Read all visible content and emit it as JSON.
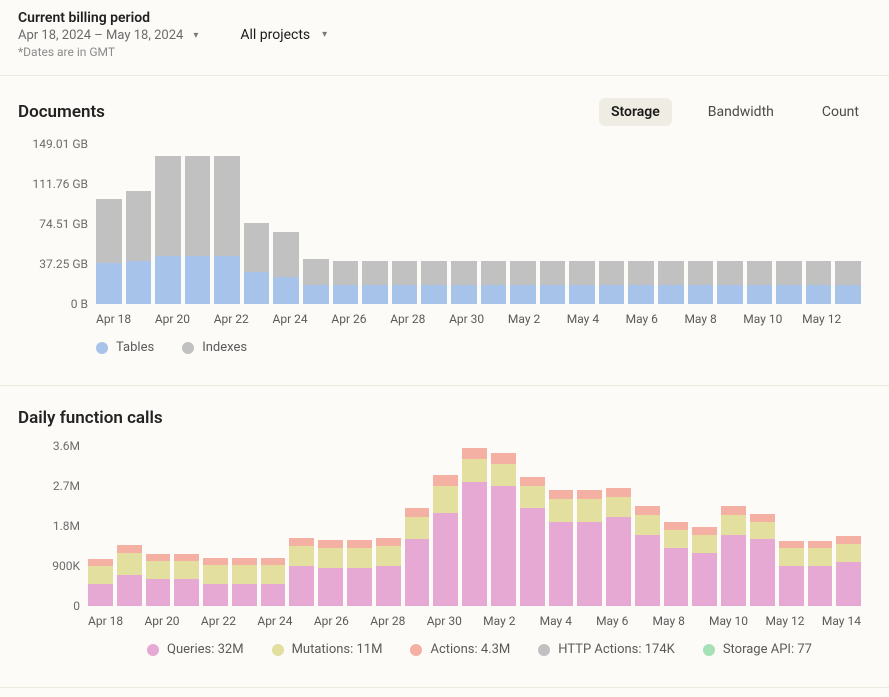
{
  "header": {
    "period_title": "Current billing period",
    "period_range": "Apr 18, 2024 – May 18, 2024",
    "period_note": "*Dates are in GMT",
    "projects_label": "All projects"
  },
  "tabs": {
    "storage": "Storage",
    "bandwidth": "Bandwidth",
    "count": "Count"
  },
  "documents": {
    "title": "Documents",
    "type": "stacked-bar",
    "ymax": 149.01,
    "yticks": [
      {
        "v": 0,
        "label": "0 B"
      },
      {
        "v": 37.25,
        "label": "37.25 GB"
      },
      {
        "v": 74.51,
        "label": "74.51 GB"
      },
      {
        "v": 111.76,
        "label": "111.76 GB"
      },
      {
        "v": 149.01,
        "label": "149.01 GB"
      }
    ],
    "xlabels": [
      "Apr 18",
      "Apr 20",
      "Apr 22",
      "Apr 24",
      "Apr 26",
      "Apr 28",
      "Apr 30",
      "May 2",
      "May 4",
      "May 6",
      "May 8",
      "May 10",
      "May 12"
    ],
    "legend": [
      {
        "label": "Tables",
        "color": "#a8c3ea"
      },
      {
        "label": "Indexes",
        "color": "#c1c1c1"
      }
    ],
    "colors": {
      "tables": "#a8c3ea",
      "indexes": "#c1c1c1"
    },
    "data": [
      {
        "tables": 38,
        "indexes": 60
      },
      {
        "tables": 40,
        "indexes": 65
      },
      {
        "tables": 45,
        "indexes": 93
      },
      {
        "tables": 45,
        "indexes": 93
      },
      {
        "tables": 45,
        "indexes": 93
      },
      {
        "tables": 30,
        "indexes": 45
      },
      {
        "tables": 25,
        "indexes": 42
      },
      {
        "tables": 18,
        "indexes": 24
      },
      {
        "tables": 18,
        "indexes": 22
      },
      {
        "tables": 18,
        "indexes": 22
      },
      {
        "tables": 18,
        "indexes": 22
      },
      {
        "tables": 18,
        "indexes": 22
      },
      {
        "tables": 18,
        "indexes": 22
      },
      {
        "tables": 18,
        "indexes": 22
      },
      {
        "tables": 18,
        "indexes": 22
      },
      {
        "tables": 18,
        "indexes": 22
      },
      {
        "tables": 18,
        "indexes": 22
      },
      {
        "tables": 18,
        "indexes": 22
      },
      {
        "tables": 18,
        "indexes": 22
      },
      {
        "tables": 18,
        "indexes": 22
      },
      {
        "tables": 18,
        "indexes": 22
      },
      {
        "tables": 18,
        "indexes": 22
      },
      {
        "tables": 18,
        "indexes": 22
      },
      {
        "tables": 18,
        "indexes": 22
      },
      {
        "tables": 18,
        "indexes": 22
      },
      {
        "tables": 18,
        "indexes": 22
      }
    ]
  },
  "calls": {
    "title": "Daily function calls",
    "type": "stacked-bar",
    "ymax": 3600,
    "yticks": [
      {
        "v": 0,
        "label": "0"
      },
      {
        "v": 900,
        "label": "900K"
      },
      {
        "v": 1800,
        "label": "1.8M"
      },
      {
        "v": 2700,
        "label": "2.7M"
      },
      {
        "v": 3600,
        "label": "3.6M"
      }
    ],
    "xlabels": [
      "Apr 18",
      "Apr 20",
      "Apr 22",
      "Apr 24",
      "Apr 26",
      "Apr 28",
      "Apr 30",
      "May 2",
      "May 4",
      "May 6",
      "May 8",
      "May 10",
      "May 12",
      "May 14"
    ],
    "legend": [
      {
        "label": "Queries: 32M",
        "color": "#e6a9d3"
      },
      {
        "label": "Mutations: 11M",
        "color": "#e2df9f"
      },
      {
        "label": "Actions: 4.3M",
        "color": "#f3b0a3"
      },
      {
        "label": "HTTP Actions: 174K",
        "color": "#c1c1c1"
      },
      {
        "label": "Storage API: 77",
        "color": "#a6e1b6"
      }
    ],
    "colors": {
      "queries": "#e6a9d3",
      "mutations": "#e2df9f",
      "actions": "#f3b0a3",
      "http": "#c1c1c1",
      "storage": "#a6e1b6"
    },
    "data": [
      {
        "queries": 500,
        "mutations": 400,
        "actions": 150
      },
      {
        "queries": 700,
        "mutations": 500,
        "actions": 180
      },
      {
        "queries": 600,
        "mutations": 420,
        "actions": 150
      },
      {
        "queries": 600,
        "mutations": 420,
        "actions": 150
      },
      {
        "queries": 500,
        "mutations": 420,
        "actions": 150
      },
      {
        "queries": 500,
        "mutations": 420,
        "actions": 150
      },
      {
        "queries": 500,
        "mutations": 420,
        "actions": 150
      },
      {
        "queries": 900,
        "mutations": 450,
        "actions": 180
      },
      {
        "queries": 850,
        "mutations": 450,
        "actions": 180
      },
      {
        "queries": 850,
        "mutations": 450,
        "actions": 180
      },
      {
        "queries": 900,
        "mutations": 450,
        "actions": 180
      },
      {
        "queries": 1500,
        "mutations": 500,
        "actions": 200
      },
      {
        "queries": 2100,
        "mutations": 600,
        "actions": 250
      },
      {
        "queries": 2800,
        "mutations": 500,
        "actions": 250
      },
      {
        "queries": 2700,
        "mutations": 500,
        "actions": 250
      },
      {
        "queries": 2200,
        "mutations": 500,
        "actions": 200
      },
      {
        "queries": 1900,
        "mutations": 500,
        "actions": 200
      },
      {
        "queries": 1900,
        "mutations": 500,
        "actions": 200
      },
      {
        "queries": 2000,
        "mutations": 450,
        "actions": 200
      },
      {
        "queries": 1600,
        "mutations": 450,
        "actions": 200
      },
      {
        "queries": 1300,
        "mutations": 400,
        "actions": 180
      },
      {
        "queries": 1200,
        "mutations": 400,
        "actions": 180
      },
      {
        "queries": 1600,
        "mutations": 450,
        "actions": 200
      },
      {
        "queries": 1500,
        "mutations": 400,
        "actions": 180
      },
      {
        "queries": 900,
        "mutations": 400,
        "actions": 160
      },
      {
        "queries": 900,
        "mutations": 400,
        "actions": 160
      },
      {
        "queries": 1000,
        "mutations": 400,
        "actions": 170
      }
    ]
  }
}
